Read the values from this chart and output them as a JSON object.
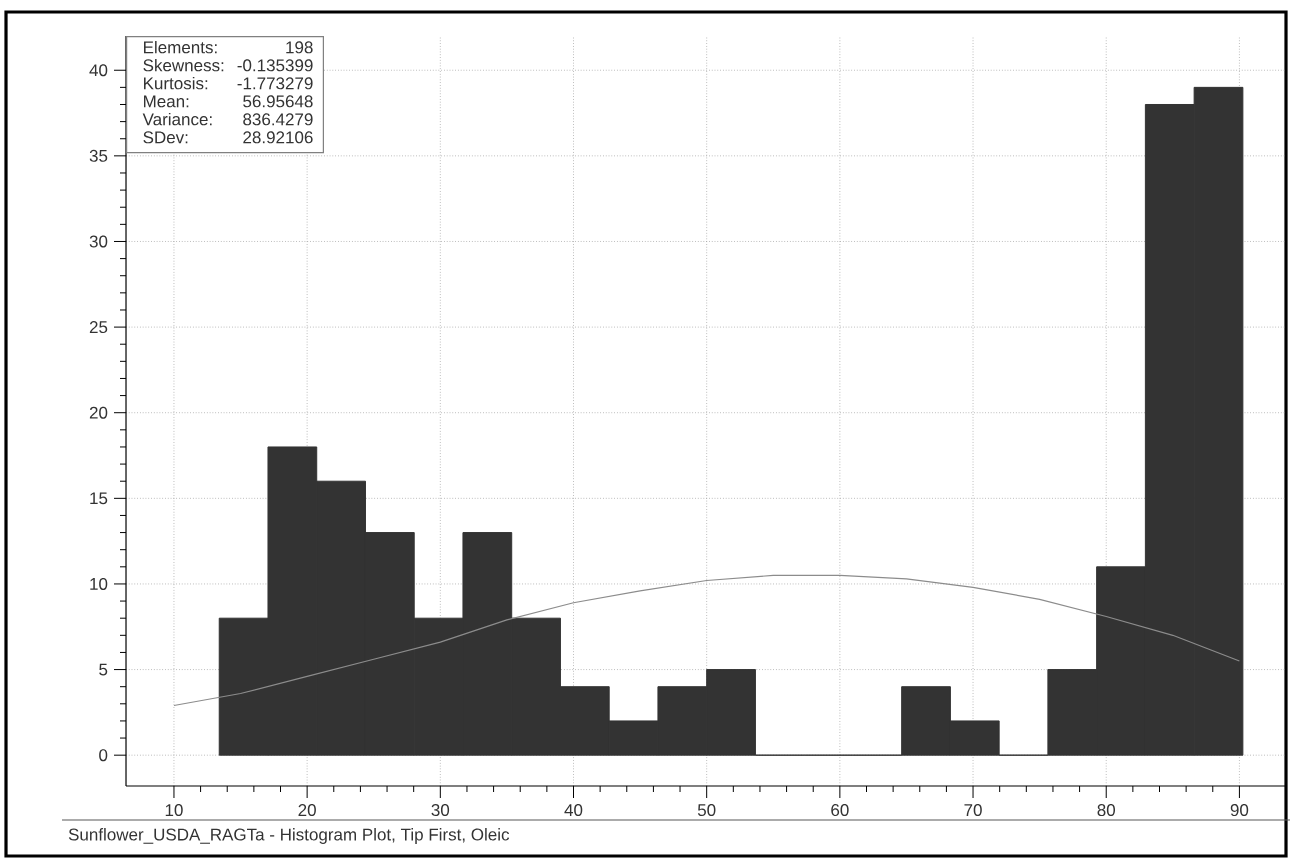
{
  "chart_data": {
    "type": "histogram",
    "bins": [
      13.4,
      17.06,
      20.72,
      24.38,
      28.04,
      31.7,
      35.36,
      39.02,
      42.68,
      46.34,
      50.0,
      53.66,
      57.32,
      60.98,
      64.64,
      68.3,
      71.96,
      75.62,
      79.28,
      82.94,
      86.6,
      90.26
    ],
    "values": [
      8,
      18,
      16,
      13,
      8,
      13,
      8,
      4,
      2,
      4,
      5,
      0,
      0,
      0,
      4,
      2,
      0,
      5,
      11,
      38,
      39
    ],
    "color": "#333333",
    "series": [
      {
        "type": "line",
        "color": "#8c8c8c",
        "x": [
          10,
          15,
          20,
          25,
          30,
          35,
          40,
          45,
          50,
          55,
          60,
          65,
          70,
          75,
          80,
          85,
          90
        ],
        "values": [
          2.9,
          3.6,
          4.6,
          5.6,
          6.6,
          7.9,
          8.9,
          9.6,
          10.2,
          10.5,
          10.5,
          10.3,
          9.8,
          9.1,
          8.1,
          7.0,
          5.5
        ]
      }
    ],
    "xlim": [
      6.4,
      93.5
    ],
    "ylim": [
      -1.8,
      42
    ],
    "xticks": [
      10,
      20,
      30,
      40,
      50,
      60,
      70,
      80,
      90
    ],
    "yticks": [
      0,
      5,
      10,
      15,
      20,
      25,
      30,
      35,
      40
    ],
    "grid": true,
    "marker": "none",
    "line_style": "solid",
    "annotations": [
      "Elements:",
      "198",
      "Skewness:",
      "-0.135399",
      "Kurtosis:",
      "-1.773279",
      "Mean:",
      "56.95648",
      "Variance:",
      "836.4279",
      "SDev:",
      "28.92106",
      "Sunflower_USDA_RAGTa - Histogram Plot, Tip First, Oleic"
    ]
  }
}
